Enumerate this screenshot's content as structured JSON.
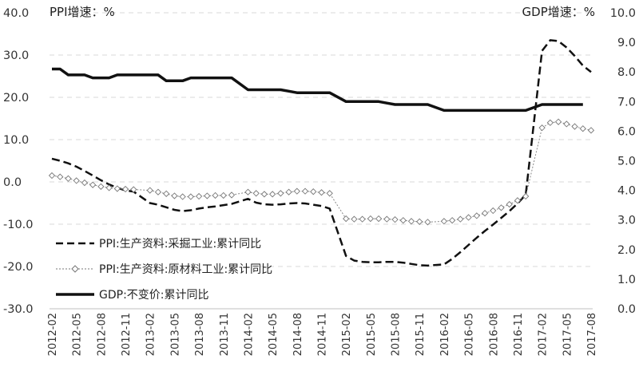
{
  "chart_data": {
    "type": "line",
    "left_axis_title": "PPI增速：%",
    "right_axis_title": "GDP增速：%",
    "left_ylim": [
      -30,
      40
    ],
    "right_ylim": [
      0,
      10
    ],
    "left_ticks": [
      "40.0",
      "30.0",
      "20.0",
      "10.0",
      "0.0",
      "-10.0",
      "-20.0",
      "-30.0"
    ],
    "right_ticks": [
      "10.0",
      "9.0",
      "8.0",
      "7.0",
      "6.0",
      "5.0",
      "4.0",
      "3.0",
      "2.0",
      "1.0",
      "0.0"
    ],
    "x_tick_labels": [
      "2012-02",
      "2012-05",
      "2012-08",
      "2012-11",
      "2013-02",
      "2013-05",
      "2013-08",
      "2013-11",
      "2014-02",
      "2014-05",
      "2014-08",
      "2014-11",
      "2015-02",
      "2015-05",
      "2015-08",
      "2015-11",
      "2016-02",
      "2016-05",
      "2016-08",
      "2016-11",
      "2017-02",
      "2017-05",
      "2017-08"
    ],
    "grid": true,
    "legend_position": "bottom-left",
    "series": [
      {
        "name": "PPI:生产资料:采掘工业:累计同比",
        "axis": "left",
        "style": "dashed",
        "color": "#111111",
        "values": [
          [
            "2012-02",
            5.5
          ],
          [
            "2012-03",
            5.0
          ],
          [
            "2012-04",
            4.4
          ],
          [
            "2012-05",
            3.6
          ],
          [
            "2012-06",
            2.6
          ],
          [
            "2012-07",
            1.5
          ],
          [
            "2012-08",
            0.4
          ],
          [
            "2012-09",
            -0.6
          ],
          [
            "2012-10",
            -1.4
          ],
          [
            "2012-11",
            -2.0
          ],
          [
            "2012-12",
            -2.3
          ],
          [
            "2013-02",
            -5.0
          ],
          [
            "2013-03",
            -5.4
          ],
          [
            "2013-04",
            -6.0
          ],
          [
            "2013-05",
            -6.6
          ],
          [
            "2013-06",
            -6.9
          ],
          [
            "2013-07",
            -6.7
          ],
          [
            "2013-08",
            -6.3
          ],
          [
            "2013-09",
            -6.0
          ],
          [
            "2013-10",
            -5.8
          ],
          [
            "2013-11",
            -5.5
          ],
          [
            "2013-12",
            -5.2
          ],
          [
            "2014-02",
            -4.0
          ],
          [
            "2014-03",
            -4.9
          ],
          [
            "2014-04",
            -5.3
          ],
          [
            "2014-05",
            -5.4
          ],
          [
            "2014-06",
            -5.3
          ],
          [
            "2014-07",
            -5.1
          ],
          [
            "2014-08",
            -5.0
          ],
          [
            "2014-09",
            -5.1
          ],
          [
            "2014-10",
            -5.4
          ],
          [
            "2014-11",
            -5.7
          ],
          [
            "2014-12",
            -6.3
          ],
          [
            "2015-02",
            -17.5
          ],
          [
            "2015-03",
            -18.6
          ],
          [
            "2015-04",
            -18.9
          ],
          [
            "2015-05",
            -19.0
          ],
          [
            "2015-06",
            -19.0
          ],
          [
            "2015-07",
            -18.9
          ],
          [
            "2015-08",
            -18.9
          ],
          [
            "2015-09",
            -19.1
          ],
          [
            "2015-10",
            -19.4
          ],
          [
            "2015-11",
            -19.7
          ],
          [
            "2015-12",
            -19.8
          ],
          [
            "2016-02",
            -19.5
          ],
          [
            "2016-03",
            -18.2
          ],
          [
            "2016-04",
            -16.6
          ],
          [
            "2016-05",
            -14.9
          ],
          [
            "2016-06",
            -13.2
          ],
          [
            "2016-07",
            -11.6
          ],
          [
            "2016-08",
            -10.1
          ],
          [
            "2016-09",
            -8.5
          ],
          [
            "2016-10",
            -6.9
          ],
          [
            "2016-11",
            -5.1
          ],
          [
            "2016-12",
            -3.0
          ],
          [
            "2017-02",
            31.0
          ],
          [
            "2017-03",
            33.5
          ],
          [
            "2017-04",
            33.3
          ],
          [
            "2017-05",
            31.8
          ],
          [
            "2017-06",
            29.8
          ],
          [
            "2017-07",
            27.5
          ],
          [
            "2017-08",
            26.0
          ]
        ]
      },
      {
        "name": "PPI:生产资料:原材料工业:累计同比",
        "axis": "left",
        "style": "dotted-diamond",
        "color": "#555555",
        "values": [
          [
            "2012-02",
            1.5
          ],
          [
            "2012-03",
            1.2
          ],
          [
            "2012-04",
            0.8
          ],
          [
            "2012-05",
            0.3
          ],
          [
            "2012-06",
            -0.2
          ],
          [
            "2012-07",
            -0.7
          ],
          [
            "2012-08",
            -1.1
          ],
          [
            "2012-09",
            -1.4
          ],
          [
            "2012-10",
            -1.6
          ],
          [
            "2012-11",
            -1.7
          ],
          [
            "2012-12",
            -1.8
          ],
          [
            "2013-02",
            -2.0
          ],
          [
            "2013-03",
            -2.4
          ],
          [
            "2013-04",
            -2.8
          ],
          [
            "2013-05",
            -3.3
          ],
          [
            "2013-06",
            -3.5
          ],
          [
            "2013-07",
            -3.5
          ],
          [
            "2013-08",
            -3.4
          ],
          [
            "2013-09",
            -3.3
          ],
          [
            "2013-10",
            -3.2
          ],
          [
            "2013-11",
            -3.2
          ],
          [
            "2013-12",
            -3.1
          ],
          [
            "2014-02",
            -2.4
          ],
          [
            "2014-03",
            -2.7
          ],
          [
            "2014-04",
            -2.9
          ],
          [
            "2014-05",
            -2.9
          ],
          [
            "2014-06",
            -2.7
          ],
          [
            "2014-07",
            -2.4
          ],
          [
            "2014-08",
            -2.2
          ],
          [
            "2014-09",
            -2.2
          ],
          [
            "2014-10",
            -2.3
          ],
          [
            "2014-11",
            -2.5
          ],
          [
            "2014-12",
            -2.7
          ],
          [
            "2015-02",
            -8.7
          ],
          [
            "2015-03",
            -8.8
          ],
          [
            "2015-04",
            -8.8
          ],
          [
            "2015-05",
            -8.7
          ],
          [
            "2015-06",
            -8.7
          ],
          [
            "2015-07",
            -8.8
          ],
          [
            "2015-08",
            -8.9
          ],
          [
            "2015-09",
            -9.1
          ],
          [
            "2015-10",
            -9.3
          ],
          [
            "2015-11",
            -9.4
          ],
          [
            "2015-12",
            -9.5
          ],
          [
            "2016-02",
            -9.3
          ],
          [
            "2016-03",
            -9.1
          ],
          [
            "2016-04",
            -8.8
          ],
          [
            "2016-05",
            -8.4
          ],
          [
            "2016-06",
            -8.0
          ],
          [
            "2016-07",
            -7.4
          ],
          [
            "2016-08",
            -6.8
          ],
          [
            "2016-09",
            -6.1
          ],
          [
            "2016-10",
            -5.3
          ],
          [
            "2016-11",
            -4.4
          ],
          [
            "2016-12",
            -3.4
          ],
          [
            "2017-02",
            12.8
          ],
          [
            "2017-03",
            14.0
          ],
          [
            "2017-04",
            14.2
          ],
          [
            "2017-05",
            13.7
          ],
          [
            "2017-06",
            13.1
          ],
          [
            "2017-07",
            12.6
          ],
          [
            "2017-08",
            12.2
          ]
        ]
      },
      {
        "name": "GDP:不变价:累计同比",
        "axis": "right",
        "style": "solid",
        "color": "#111111",
        "values": [
          [
            "2012-02",
            8.1
          ],
          [
            "2012-03",
            8.1
          ],
          [
            "2012-04",
            7.9
          ],
          [
            "2012-05",
            7.9
          ],
          [
            "2012-06",
            7.9
          ],
          [
            "2012-07",
            7.8
          ],
          [
            "2012-08",
            7.8
          ],
          [
            "2012-09",
            7.8
          ],
          [
            "2012-10",
            7.9
          ],
          [
            "2012-11",
            7.9
          ],
          [
            "2012-12",
            7.9
          ],
          [
            "2013-02",
            7.9
          ],
          [
            "2013-03",
            7.9
          ],
          [
            "2013-04",
            7.7
          ],
          [
            "2013-05",
            7.7
          ],
          [
            "2013-06",
            7.7
          ],
          [
            "2013-07",
            7.8
          ],
          [
            "2013-08",
            7.8
          ],
          [
            "2013-09",
            7.8
          ],
          [
            "2013-10",
            7.8
          ],
          [
            "2013-11",
            7.8
          ],
          [
            "2013-12",
            7.8
          ],
          [
            "2014-02",
            7.4
          ],
          [
            "2014-03",
            7.4
          ],
          [
            "2014-04",
            7.4
          ],
          [
            "2014-05",
            7.4
          ],
          [
            "2014-06",
            7.4
          ],
          [
            "2014-07",
            7.35
          ],
          [
            "2014-08",
            7.3
          ],
          [
            "2014-09",
            7.3
          ],
          [
            "2014-10",
            7.3
          ],
          [
            "2014-11",
            7.3
          ],
          [
            "2014-12",
            7.3
          ],
          [
            "2015-02",
            7.0
          ],
          [
            "2015-03",
            7.0
          ],
          [
            "2015-04",
            7.0
          ],
          [
            "2015-05",
            7.0
          ],
          [
            "2015-06",
            7.0
          ],
          [
            "2015-07",
            6.95
          ],
          [
            "2015-08",
            6.9
          ],
          [
            "2015-09",
            6.9
          ],
          [
            "2015-10",
            6.9
          ],
          [
            "2015-11",
            6.9
          ],
          [
            "2015-12",
            6.9
          ],
          [
            "2016-02",
            6.7
          ],
          [
            "2016-03",
            6.7
          ],
          [
            "2016-04",
            6.7
          ],
          [
            "2016-05",
            6.7
          ],
          [
            "2016-06",
            6.7
          ],
          [
            "2016-07",
            6.7
          ],
          [
            "2016-08",
            6.7
          ],
          [
            "2016-09",
            6.7
          ],
          [
            "2016-10",
            6.7
          ],
          [
            "2016-11",
            6.7
          ],
          [
            "2016-12",
            6.7
          ],
          [
            "2017-02",
            6.9
          ],
          [
            "2017-03",
            6.9
          ],
          [
            "2017-04",
            6.9
          ],
          [
            "2017-05",
            6.9
          ],
          [
            "2017-06",
            6.9
          ],
          [
            "2017-07",
            6.9
          ]
        ]
      }
    ]
  }
}
